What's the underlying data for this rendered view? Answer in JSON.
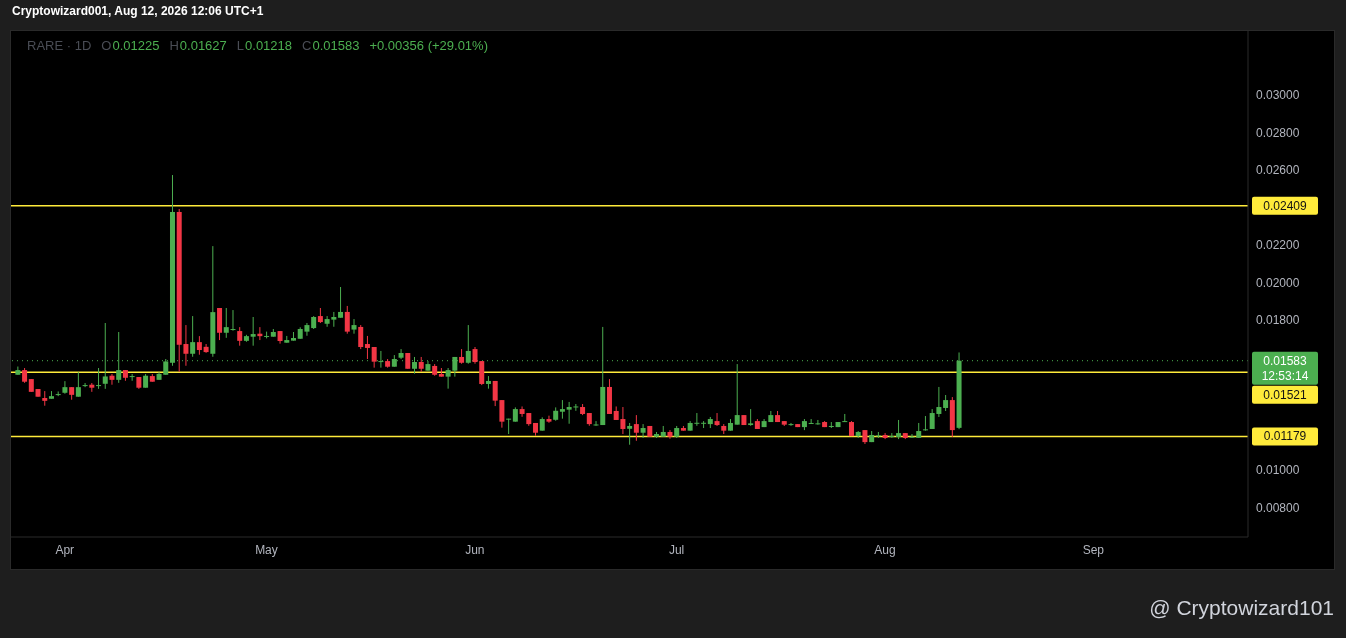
{
  "chart_data": {
    "type": "candlestick",
    "title": "RARE · 1D",
    "x": [
      "2026-03-25",
      "2026-03-26",
      "2026-03-27",
      "2026-03-28",
      "2026-03-29",
      "2026-03-30",
      "2026-03-31",
      "2026-04-01",
      "2026-04-02",
      "2026-04-03",
      "2026-04-04",
      "2026-04-05",
      "2026-04-06",
      "2026-04-07",
      "2026-04-08",
      "2026-04-09",
      "2026-04-10",
      "2026-04-11",
      "2026-04-12",
      "2026-04-13",
      "2026-04-14",
      "2026-04-15",
      "2026-04-16",
      "2026-04-17",
      "2026-04-18",
      "2026-04-19",
      "2026-04-20",
      "2026-04-21",
      "2026-04-22",
      "2026-04-23",
      "2026-04-24",
      "2026-04-25",
      "2026-04-26",
      "2026-04-27",
      "2026-04-28",
      "2026-04-29",
      "2026-04-30",
      "2026-05-01",
      "2026-05-02",
      "2026-05-03",
      "2026-05-04",
      "2026-05-05",
      "2026-05-06",
      "2026-05-07",
      "2026-05-08",
      "2026-05-09",
      "2026-05-10",
      "2026-05-11",
      "2026-05-12",
      "2026-05-13",
      "2026-05-14",
      "2026-05-15",
      "2026-05-16",
      "2026-05-17",
      "2026-05-18",
      "2026-05-19",
      "2026-05-20",
      "2026-05-21",
      "2026-05-22",
      "2026-05-23",
      "2026-05-24",
      "2026-05-25",
      "2026-05-26",
      "2026-05-27",
      "2026-05-28",
      "2026-05-29",
      "2026-05-30",
      "2026-05-31",
      "2026-06-01",
      "2026-06-02",
      "2026-06-03",
      "2026-06-04",
      "2026-06-05",
      "2026-06-06",
      "2026-06-07",
      "2026-06-08",
      "2026-06-09",
      "2026-06-10",
      "2026-06-11",
      "2026-06-12",
      "2026-06-13",
      "2026-06-14",
      "2026-06-15",
      "2026-06-16",
      "2026-06-17",
      "2026-06-18",
      "2026-06-19",
      "2026-06-20",
      "2026-06-21",
      "2026-06-22",
      "2026-06-23",
      "2026-06-24",
      "2026-06-25",
      "2026-06-26",
      "2026-06-27",
      "2026-06-28",
      "2026-06-29",
      "2026-06-30",
      "2026-07-01",
      "2026-07-02",
      "2026-07-03",
      "2026-07-04",
      "2026-07-05",
      "2026-07-06",
      "2026-07-07",
      "2026-07-08",
      "2026-07-09",
      "2026-07-10",
      "2026-07-11",
      "2026-07-12",
      "2026-07-13",
      "2026-07-14",
      "2026-07-15",
      "2026-07-16",
      "2026-07-17",
      "2026-07-18",
      "2026-07-19",
      "2026-07-20",
      "2026-07-21",
      "2026-07-22",
      "2026-07-23",
      "2026-07-24",
      "2026-07-25",
      "2026-07-26",
      "2026-07-27",
      "2026-07-28",
      "2026-07-29",
      "2026-07-30",
      "2026-07-31",
      "2026-08-01",
      "2026-08-02",
      "2026-08-03",
      "2026-08-04",
      "2026-08-05",
      "2026-08-06",
      "2026-08-07",
      "2026-08-08",
      "2026-08-09",
      "2026-08-10",
      "2026-08-11",
      "2026-08-12"
    ],
    "ohlc": [
      [
        0.01508,
        0.01552,
        0.01508,
        0.01533
      ],
      [
        0.01533,
        0.01544,
        0.01465,
        0.01471
      ],
      [
        0.01485,
        0.01485,
        0.01417,
        0.01417
      ],
      [
        0.01432,
        0.01432,
        0.01391,
        0.01391
      ],
      [
        0.01384,
        0.01421,
        0.01343,
        0.01369
      ],
      [
        0.0138,
        0.01421,
        0.0138,
        0.01394
      ],
      [
        0.01401,
        0.01419,
        0.01394,
        0.01405
      ],
      [
        0.01412,
        0.01474,
        0.01407,
        0.01442
      ],
      [
        0.01442,
        0.01442,
        0.01375,
        0.01401
      ],
      [
        0.01391,
        0.01522,
        0.01391,
        0.01442
      ],
      [
        0.01449,
        0.01464,
        0.01442,
        0.01453
      ],
      [
        0.01455,
        0.01464,
        0.01417,
        0.01439
      ],
      [
        0.01449,
        0.01544,
        0.01433,
        0.01453
      ],
      [
        0.0146,
        0.01784,
        0.01433,
        0.01499
      ],
      [
        0.01503,
        0.01512,
        0.01455,
        0.01481
      ],
      [
        0.01481,
        0.01736,
        0.01465,
        0.01533
      ],
      [
        0.01533,
        0.01533,
        0.01476,
        0.01492
      ],
      [
        0.01496,
        0.01512,
        0.01476,
        0.01501
      ],
      [
        0.01496,
        0.01496,
        0.01433,
        0.01439
      ],
      [
        0.01439,
        0.01512,
        0.01439,
        0.01503
      ],
      [
        0.01501,
        0.01512,
        0.01471,
        0.01471
      ],
      [
        0.01481,
        0.01522,
        0.01481,
        0.01513
      ],
      [
        0.01508,
        0.01592,
        0.01508,
        0.01579
      ],
      [
        0.01572,
        0.02573,
        0.01556,
        0.02376
      ],
      [
        0.02376,
        0.02392,
        0.01524,
        0.01668
      ],
      [
        0.01672,
        0.01773,
        0.01556,
        0.0162
      ],
      [
        0.0162,
        0.01821,
        0.01604,
        0.01682
      ],
      [
        0.01682,
        0.01714,
        0.01615,
        0.0164
      ],
      [
        0.01657,
        0.01672,
        0.01625,
        0.01629
      ],
      [
        0.0162,
        0.02194,
        0.01604,
        0.01842
      ],
      [
        0.01864,
        0.01864,
        0.01693,
        0.01732
      ],
      [
        0.01732,
        0.01864,
        0.01705,
        0.01762
      ],
      [
        0.01748,
        0.01853,
        0.01743,
        0.01752
      ],
      [
        0.01741,
        0.01762,
        0.01663,
        0.01689
      ],
      [
        0.01689,
        0.01721,
        0.01684,
        0.01714
      ],
      [
        0.01711,
        0.01816,
        0.01663,
        0.01725
      ],
      [
        0.01727,
        0.01762,
        0.01693,
        0.01714
      ],
      [
        0.01711,
        0.01738,
        0.01702,
        0.01715
      ],
      [
        0.01711,
        0.01752,
        0.01711,
        0.01736
      ],
      [
        0.01741,
        0.01741,
        0.01674,
        0.01688
      ],
      [
        0.01679,
        0.01715,
        0.01679,
        0.01693
      ],
      [
        0.0169,
        0.01736,
        0.0169,
        0.01704
      ],
      [
        0.017,
        0.01761,
        0.017,
        0.01752
      ],
      [
        0.01738,
        0.01784,
        0.01716,
        0.01773
      ],
      [
        0.01757,
        0.01821,
        0.01752,
        0.01816
      ],
      [
        0.01821,
        0.01864,
        0.01784,
        0.01789
      ],
      [
        0.0178,
        0.01821,
        0.01764,
        0.01805
      ],
      [
        0.01802,
        0.01843,
        0.01764,
        0.01816
      ],
      [
        0.01812,
        0.01976,
        0.01812,
        0.01843
      ],
      [
        0.01843,
        0.01875,
        0.01727,
        0.01738
      ],
      [
        0.01749,
        0.01805,
        0.01727,
        0.01773
      ],
      [
        0.01763,
        0.01773,
        0.01645,
        0.01656
      ],
      [
        0.01672,
        0.01715,
        0.01592,
        0.01651
      ],
      [
        0.01656,
        0.01656,
        0.01546,
        0.01578
      ],
      [
        0.01578,
        0.01635,
        0.01546,
        0.01581
      ],
      [
        0.01581,
        0.01592,
        0.01546,
        0.01551
      ],
      [
        0.01551,
        0.01613,
        0.01551,
        0.01592
      ],
      [
        0.01599,
        0.01645,
        0.01592,
        0.01624
      ],
      [
        0.01624,
        0.01624,
        0.0154,
        0.0154
      ],
      [
        0.0154,
        0.01603,
        0.01514,
        0.01576
      ],
      [
        0.01576,
        0.01603,
        0.01524,
        0.0154
      ],
      [
        0.0153,
        0.01581,
        0.0153,
        0.01565
      ],
      [
        0.01555,
        0.01565,
        0.01503,
        0.01508
      ],
      [
        0.01512,
        0.01544,
        0.01498,
        0.01498
      ],
      [
        0.01498,
        0.01544,
        0.01434,
        0.01533
      ],
      [
        0.0153,
        0.01603,
        0.01498,
        0.01603
      ],
      [
        0.01603,
        0.01645,
        0.01567,
        0.01572
      ],
      [
        0.01572,
        0.01773,
        0.01567,
        0.01635
      ],
      [
        0.01645,
        0.01656,
        0.01567,
        0.01576
      ],
      [
        0.01581,
        0.01581,
        0.01453,
        0.01459
      ],
      [
        0.01459,
        0.01501,
        0.01434,
        0.01475
      ],
      [
        0.01475,
        0.01475,
        0.01341,
        0.0137
      ],
      [
        0.01373,
        0.01373,
        0.01226,
        0.01258
      ],
      [
        0.0127,
        0.01274,
        0.01192,
        0.01274
      ],
      [
        0.01258,
        0.01334,
        0.01258,
        0.01325
      ],
      [
        0.01325,
        0.01339,
        0.01284,
        0.01299
      ],
      [
        0.01304,
        0.01304,
        0.01236,
        0.01245
      ],
      [
        0.01251,
        0.01251,
        0.01183,
        0.01199
      ],
      [
        0.0121,
        0.01281,
        0.0121,
        0.01272
      ],
      [
        0.01272,
        0.0129,
        0.01252,
        0.01258
      ],
      [
        0.01268,
        0.01334,
        0.01263,
        0.01316
      ],
      [
        0.01311,
        0.01373,
        0.01274,
        0.01325
      ],
      [
        0.01322,
        0.01363,
        0.01247,
        0.01336
      ],
      [
        0.01336,
        0.01352,
        0.01316,
        0.01339
      ],
      [
        0.01336,
        0.01352,
        0.01293,
        0.01299
      ],
      [
        0.01304,
        0.01304,
        0.01236,
        0.01245
      ],
      [
        0.0124,
        0.01261,
        0.01236,
        0.01243
      ],
      [
        0.0124,
        0.01763,
        0.0124,
        0.01443
      ],
      [
        0.01443,
        0.01485,
        0.01299,
        0.01299
      ],
      [
        0.01315,
        0.01339,
        0.01267,
        0.01267
      ],
      [
        0.01272,
        0.01336,
        0.01192,
        0.01219
      ],
      [
        0.0122,
        0.01251,
        0.01135,
        0.01235
      ],
      [
        0.01245,
        0.01293,
        0.01156,
        0.01199
      ],
      [
        0.01199,
        0.01245,
        0.01171,
        0.01224
      ],
      [
        0.01235,
        0.01235,
        0.01178,
        0.01178
      ],
      [
        0.01178,
        0.01203,
        0.01171,
        0.01192
      ],
      [
        0.01178,
        0.01235,
        0.01178,
        0.01203
      ],
      [
        0.01203,
        0.01213,
        0.01167,
        0.01178
      ],
      [
        0.01178,
        0.01235,
        0.01171,
        0.01224
      ],
      [
        0.01224,
        0.01235,
        0.0121,
        0.0121
      ],
      [
        0.0121,
        0.01261,
        0.0121,
        0.01251
      ],
      [
        0.01249,
        0.01304,
        0.01236,
        0.01252
      ],
      [
        0.01249,
        0.01261,
        0.01224,
        0.01252
      ],
      [
        0.01245,
        0.01283,
        0.01224,
        0.01272
      ],
      [
        0.01261,
        0.01304,
        0.01235,
        0.0124
      ],
      [
        0.01235,
        0.01245,
        0.01192,
        0.0121
      ],
      [
        0.0121,
        0.01272,
        0.0121,
        0.01251
      ],
      [
        0.01242,
        0.01565,
        0.01242,
        0.01293
      ],
      [
        0.01293,
        0.01293,
        0.0124,
        0.0124
      ],
      [
        0.0124,
        0.01325,
        0.01236,
        0.01249
      ],
      [
        0.01261,
        0.01272,
        0.01219,
        0.01219
      ],
      [
        0.01229,
        0.01272,
        0.01229,
        0.01261
      ],
      [
        0.01256,
        0.01315,
        0.01256,
        0.01293
      ],
      [
        0.01293,
        0.01315,
        0.01256,
        0.01256
      ],
      [
        0.01261,
        0.01261,
        0.01235,
        0.01242
      ],
      [
        0.01242,
        0.01251,
        0.01236,
        0.01245
      ],
      [
        0.01245,
        0.01245,
        0.01229,
        0.01229
      ],
      [
        0.01229,
        0.01272,
        0.01213,
        0.01261
      ],
      [
        0.01247,
        0.01272,
        0.01247,
        0.01251
      ],
      [
        0.01245,
        0.01267,
        0.01242,
        0.01249
      ],
      [
        0.01256,
        0.01261,
        0.01229,
        0.01229
      ],
      [
        0.01231,
        0.01256,
        0.01224,
        0.01235
      ],
      [
        0.01229,
        0.01256,
        0.01229,
        0.01256
      ],
      [
        0.01258,
        0.01299,
        0.01256,
        0.01261
      ],
      [
        0.01256,
        0.01261,
        0.01181,
        0.01181
      ],
      [
        0.01181,
        0.01208,
        0.01171,
        0.01203
      ],
      [
        0.01213,
        0.01213,
        0.01139,
        0.01149
      ],
      [
        0.01149,
        0.01208,
        0.01149,
        0.01187
      ],
      [
        0.01181,
        0.01203,
        0.01171,
        0.01185
      ],
      [
        0.01187,
        0.01197,
        0.01165,
        0.01171
      ],
      [
        0.01178,
        0.01197,
        0.01172,
        0.01181
      ],
      [
        0.01176,
        0.01267,
        0.01165,
        0.01197
      ],
      [
        0.01197,
        0.01197,
        0.01165,
        0.01171
      ],
      [
        0.01174,
        0.01192,
        0.01171,
        0.01178
      ],
      [
        0.01172,
        0.01251,
        0.01172,
        0.01208
      ],
      [
        0.01213,
        0.01288,
        0.0121,
        0.01217
      ],
      [
        0.01219,
        0.01325,
        0.01219,
        0.01304
      ],
      [
        0.01299,
        0.01443,
        0.01283,
        0.01336
      ],
      [
        0.01331,
        0.014,
        0.01315,
        0.01373
      ],
      [
        0.01373,
        0.01389,
        0.01176,
        0.01213
      ],
      [
        0.01225,
        0.01627,
        0.01218,
        0.01583
      ]
    ],
    "xlim": [
      "2026-03-24",
      "2026-09-24"
    ],
    "xticks": [
      {
        "value": "2026-04-01",
        "label": "Apr"
      },
      {
        "value": "2026-05-01",
        "label": "May"
      },
      {
        "value": "2026-06-01",
        "label": "Jun"
      },
      {
        "value": "2026-07-01",
        "label": "Jul"
      },
      {
        "value": "2026-08-01",
        "label": "Aug"
      },
      {
        "value": "2026-09-01",
        "label": "Sep"
      }
    ],
    "ylim": [
      0.00643,
      0.03341
    ],
    "yticks": [
      {
        "value": 0.008,
        "label": "0.00800"
      },
      {
        "value": 0.01,
        "label": "0.01000"
      },
      {
        "value": 0.018,
        "label": "0.01800"
      },
      {
        "value": 0.02,
        "label": "0.02000"
      },
      {
        "value": 0.022,
        "label": "0.02200"
      },
      {
        "value": 0.026,
        "label": "0.02600"
      },
      {
        "value": 0.028,
        "label": "0.02800"
      },
      {
        "value": 0.03,
        "label": "0.03000"
      }
    ],
    "ref_lines": [
      {
        "axis": "y",
        "value": 0.02409,
        "label": "0.02409",
        "color": "#ffeb3b"
      },
      {
        "axis": "y",
        "value": 0.01521,
        "label": "0.01521",
        "color": "#ffeb3b"
      },
      {
        "axis": "y",
        "value": 0.01179,
        "label": "0.01179",
        "color": "#ffeb3b"
      },
      {
        "axis": "y",
        "value": 0.01583,
        "label": "0.01583",
        "color": "#4caf50",
        "line_style": "dotted"
      }
    ],
    "annotations": [
      "O",
      "0.01225",
      "H",
      "0.01627",
      "L",
      "0.01218",
      "C",
      "0.01583",
      "+0.00356 (+29.01%)",
      "Cryptowizard001, Aug 12, 2026 12:06 UTC+1",
      "@ Cryptowizard101",
      "12:53:14"
    ]
  }
}
